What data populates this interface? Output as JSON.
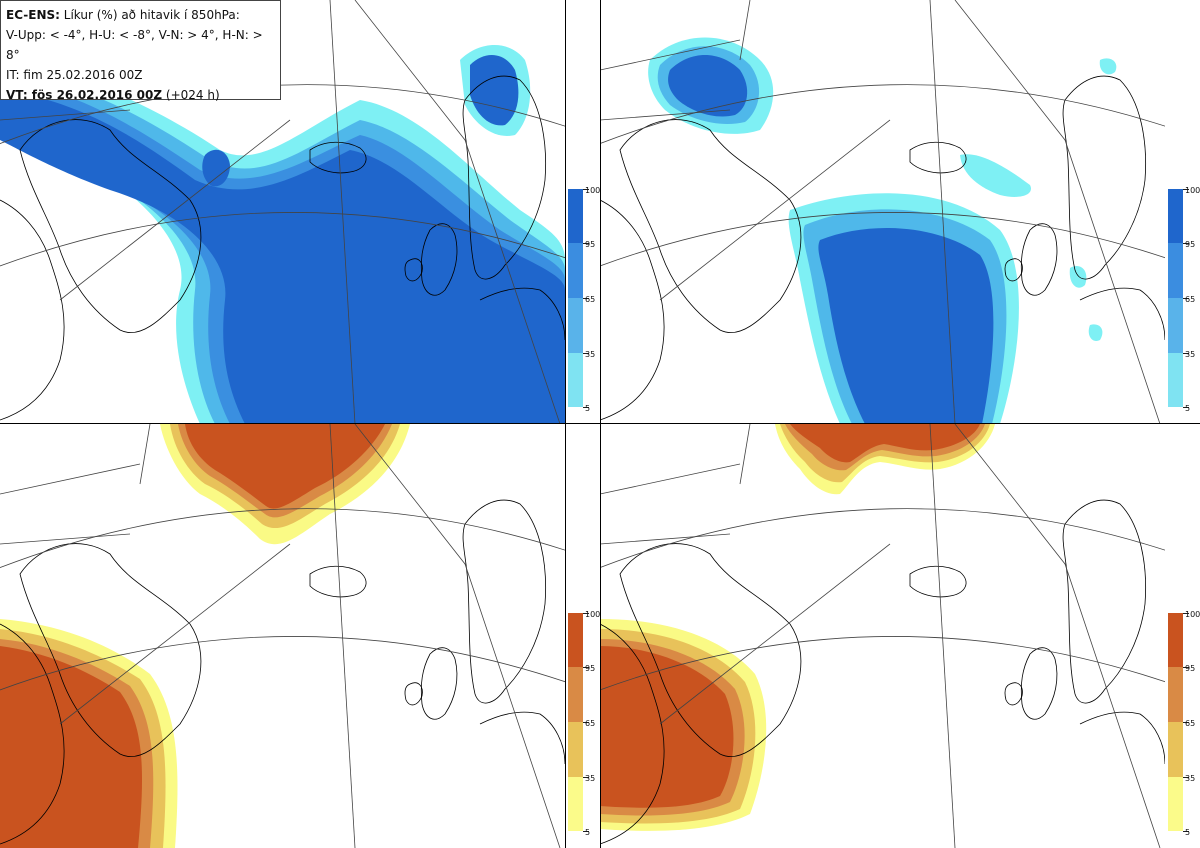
{
  "header": {
    "product": "EC-ENS:",
    "title": "Líkur (%) að hitavik í 850hPa:",
    "legend_line": "V-Upp: < -4°, H-U: < -8°, V-N: > 4°, H-N: > 8°",
    "init_time": "IT: fim 25.02.2016 00Z",
    "valid_label": "VT: fös 26.02.2016 00Z",
    "lead": "(+024 h)"
  },
  "colorbars": {
    "cold": {
      "labels": [
        "100",
        "95",
        "65",
        "35",
        "5"
      ],
      "colors": [
        "#1f66cc",
        "#3b8de0",
        "#59b3ea",
        "#7fe3f2"
      ]
    },
    "warm": {
      "labels": [
        "100",
        "95",
        "65",
        "35",
        "5"
      ],
      "colors": [
        "#c9531f",
        "#d98a45",
        "#e8c25a",
        "#fbfb8a"
      ]
    }
  },
  "colors": {
    "land_outline": "#000000",
    "grid": "#444444",
    "cold_light": "#7ef0f4",
    "cold_mid": "#4fb8ea",
    "cold_dark": "#3a8fe0",
    "cold_core": "#1f66cc",
    "warm_light": "#fafa85",
    "warm_mid": "#e8c25a",
    "warm_dark": "#d98a45",
    "warm_core": "#c9531f"
  }
}
